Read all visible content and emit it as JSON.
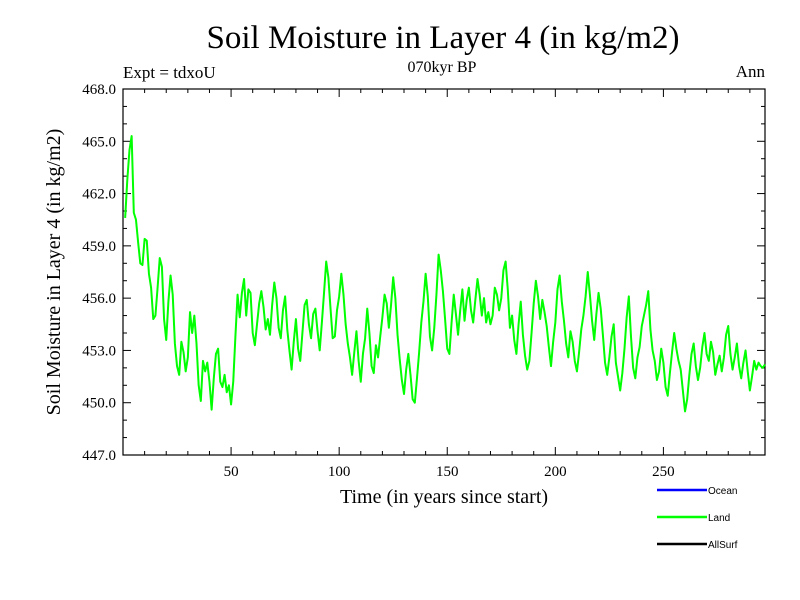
{
  "chart_data": {
    "type": "line",
    "title": "Soil Moisture in Layer 4 (in kg/m2)",
    "subtitle": "070kyr BP",
    "left_note": "Expt = tdxoU",
    "right_note": "Ann",
    "xlabel": "Time (in years since start)",
    "ylabel": "Soil Moisture in Layer 4 (in kg/m2)",
    "xlim": [
      0,
      297
    ],
    "ylim": [
      447.0,
      468.0
    ],
    "x_ticks": [
      50,
      100,
      150,
      200,
      250
    ],
    "y_ticks": [
      447.0,
      450.0,
      453.0,
      456.0,
      459.0,
      462.0,
      465.0,
      468.0
    ],
    "y_tick_labels": [
      "447.0",
      "450.0",
      "453.0",
      "456.0",
      "459.0",
      "462.0",
      "465.0",
      "468.0"
    ],
    "legend": [
      {
        "name": "Ocean",
        "color": "#0000ff"
      },
      {
        "name": "Land",
        "color": "#00ff00"
      },
      {
        "name": "AllSurf",
        "color": "#000000"
      }
    ],
    "series": [
      {
        "name": "Land",
        "color": "#00ff00",
        "x_start": 1,
        "x_step": 1,
        "values": [
          460.6,
          462.8,
          464.5,
          465.3,
          460.9,
          460.5,
          459.2,
          458.0,
          457.9,
          459.4,
          459.3,
          457.4,
          456.6,
          454.8,
          455.0,
          456.6,
          458.3,
          457.8,
          454.8,
          453.6,
          455.8,
          457.3,
          456.2,
          453.4,
          452.1,
          451.6,
          453.5,
          452.9,
          451.8,
          452.6,
          455.2,
          454.0,
          455.0,
          453.4,
          451.0,
          450.1,
          452.4,
          451.8,
          452.3,
          451.2,
          449.6,
          451.4,
          452.8,
          453.1,
          451.2,
          450.9,
          451.6,
          450.6,
          451.0,
          449.9,
          451.2,
          453.8,
          456.2,
          454.9,
          456.3,
          457.1,
          455.0,
          456.5,
          456.3,
          454.0,
          453.3,
          454.5,
          455.7,
          456.4,
          455.5,
          454.2,
          454.8,
          453.9,
          455.6,
          456.9,
          456.0,
          454.3,
          453.7,
          455.3,
          456.1,
          454.2,
          453.0,
          451.9,
          453.5,
          454.8,
          453.1,
          452.4,
          454.0,
          455.6,
          455.9,
          454.5,
          453.7,
          455.1,
          455.4,
          454.1,
          453.0,
          454.6,
          456.3,
          458.1,
          457.2,
          455.4,
          453.7,
          453.8,
          455.3,
          456.1,
          457.4,
          456.2,
          454.5,
          453.4,
          452.6,
          451.6,
          452.9,
          454.1,
          452.4,
          451.2,
          452.8,
          453.7,
          455.4,
          454.0,
          452.1,
          451.7,
          453.3,
          452.6,
          453.8,
          454.9,
          456.2,
          455.7,
          454.3,
          455.6,
          457.2,
          456.0,
          453.9,
          452.5,
          451.3,
          450.5,
          451.9,
          452.8,
          451.6,
          450.2,
          450.0,
          451.4,
          452.9,
          454.6,
          455.8,
          457.4,
          456.1,
          453.8,
          453.0,
          454.3,
          456.2,
          458.5,
          457.6,
          456.4,
          454.8,
          453.1,
          452.8,
          454.6,
          456.2,
          455.1,
          453.9,
          455.3,
          456.5,
          454.7,
          455.9,
          456.6,
          455.3,
          454.6,
          455.9,
          457.1,
          456.2,
          455.0,
          456.0,
          454.6,
          455.2,
          454.5,
          455.0,
          456.6,
          456.2,
          455.3,
          456.0,
          457.6,
          458.1,
          456.5,
          454.3,
          455.0,
          453.6,
          452.8,
          454.5,
          455.8,
          453.9,
          452.7,
          451.9,
          452.4,
          454.0,
          455.7,
          457.0,
          456.1,
          454.8,
          455.9,
          455.2,
          454.4,
          453.2,
          452.1,
          453.5,
          454.6,
          456.5,
          457.3,
          455.8,
          454.7,
          453.4,
          452.6,
          454.1,
          453.5,
          452.4,
          451.8,
          452.9,
          454.2,
          455.0,
          456.1,
          457.5,
          456.2,
          454.7,
          453.6,
          455.1,
          456.3,
          455.4,
          453.9,
          452.3,
          451.6,
          452.6,
          453.8,
          454.5,
          452.3,
          451.5,
          450.7,
          451.7,
          453.1,
          454.9,
          456.1,
          453.8,
          452.0,
          451.4,
          452.6,
          453.2,
          454.4,
          455.0,
          455.6,
          456.4,
          454.2,
          453.0,
          452.4,
          451.3,
          451.8,
          453.1,
          452.3,
          450.9,
          450.4,
          451.7,
          452.9,
          454.0,
          453.1,
          452.4,
          451.9,
          450.7,
          449.5,
          450.2,
          451.6,
          452.8,
          453.4,
          452.1,
          451.3,
          452.0,
          453.2,
          454.0,
          452.8,
          452.4,
          453.5,
          452.9,
          451.6,
          452.2,
          452.7,
          451.8,
          452.6,
          453.9,
          454.4,
          452.8,
          451.9,
          452.6,
          453.4,
          452.1,
          451.4,
          452.3,
          453.0,
          451.8,
          450.7,
          451.5,
          452.4,
          451.9,
          452.3,
          452.1,
          452.0,
          452.2
        ]
      }
    ]
  }
}
